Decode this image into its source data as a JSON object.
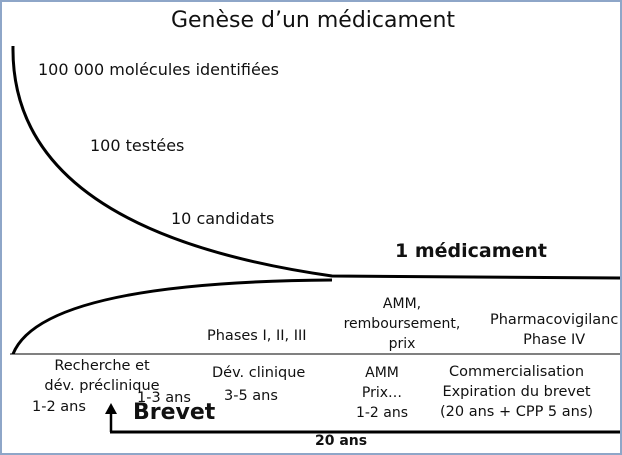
{
  "title": "Genèse d’un médicament",
  "funnel": {
    "molecules": "100 000 molécules identifiées",
    "tested": "100 testées",
    "candidates": "10 candidats",
    "drug": "1 médicament"
  },
  "upper_stages": {
    "phases": "Phases I, II, III",
    "amm": [
      "AMM,",
      "remboursement,",
      "prix"
    ],
    "pharmacovigilance": [
      "Pharmacovigilanc",
      "Phase IV"
    ]
  },
  "lower_stages": {
    "research": [
      "Recherche et",
      "dév. préclinique"
    ],
    "research_duration": "1-2 ans",
    "patent_delay": "1-3 ans",
    "patent_label": "Brevet",
    "clinical": "Dév. clinique",
    "clinical_duration": "3-5 ans",
    "amm": [
      "AMM",
      "Prix…",
      "1-2 ans"
    ],
    "commercial": [
      "Commercialisation",
      "Expiration du brevet",
      "(20 ans + CPP 5 ans)"
    ],
    "patent_total": "20 ans"
  }
}
